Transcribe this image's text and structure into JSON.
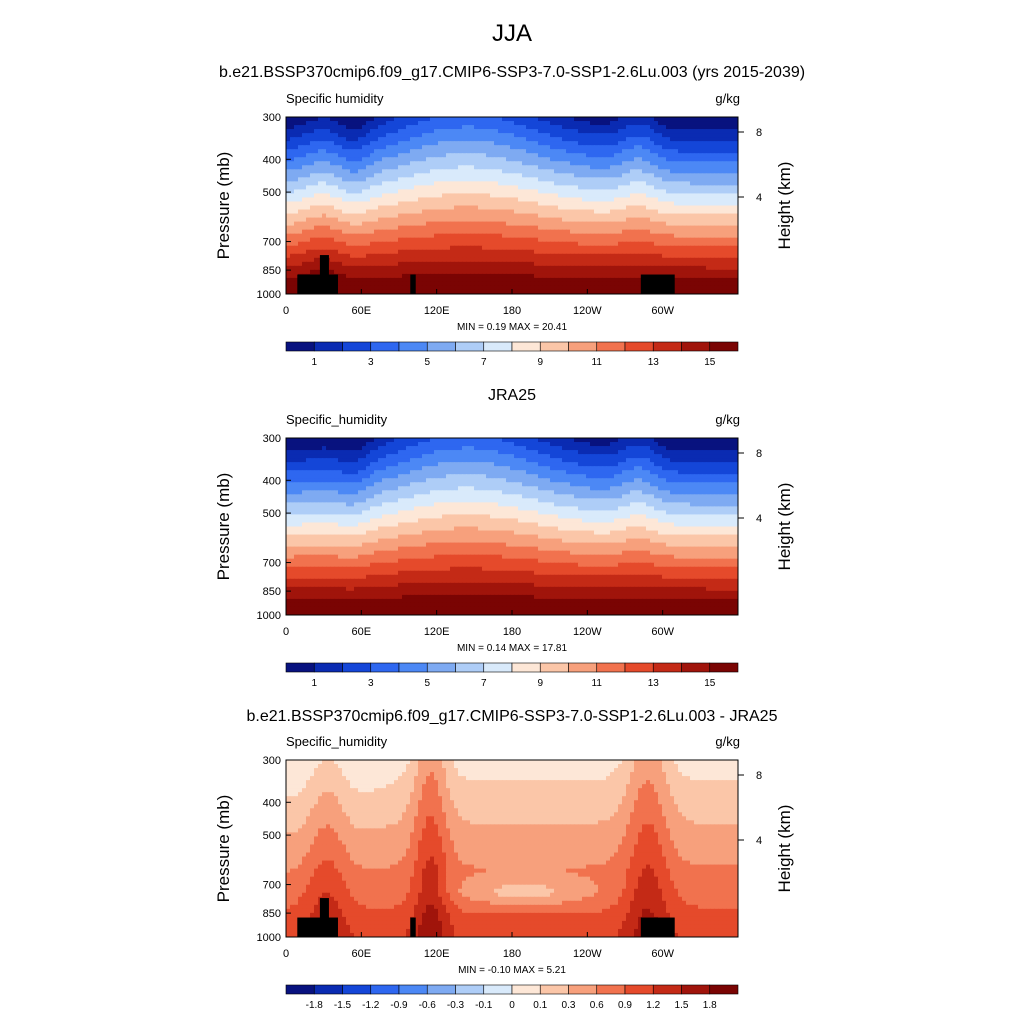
{
  "figure": {
    "title": "JJA"
  },
  "chart_data": [
    {
      "type": "heatmap",
      "title": "b.e21.BSSP370cmip6.f09_g17.CMIP6-SSP3-7.0-SSP1-2.6Lu.003 (yrs 2015-2039)",
      "variable": "Specific humidity",
      "units": "g/kg",
      "ylabel": "Pressure (mb)",
      "ylabel_right": "Height (km)",
      "x_ticks": [
        "0",
        "60E",
        "120E",
        "180",
        "120W",
        "60W"
      ],
      "y_ticks": [
        "300",
        "400",
        "500",
        "700",
        "850",
        "1000"
      ],
      "y2_ticks": [
        "8",
        "4"
      ],
      "minmax": "MIN =  0.19  MAX =  20.41",
      "min": 0.19,
      "max": 20.41,
      "colorbar_labels": [
        "1",
        "3",
        "5",
        "7",
        "9",
        "11",
        "13",
        "15"
      ],
      "colors": [
        "#08127f",
        "#0a2bb2",
        "#1446d8",
        "#2e67f0",
        "#4c88f5",
        "#7eaaf2",
        "#aecdf7",
        "#d9eafb",
        "#fde7d7",
        "#fbc6a8",
        "#f7a07c",
        "#f1724e",
        "#e54a2b",
        "#c42a16",
        "#a0140b",
        "#7a0403"
      ],
      "terrain": true
    },
    {
      "type": "heatmap",
      "title": "JRA25",
      "variable": "Specific_humidity",
      "units": "g/kg",
      "ylabel": "Pressure (mb)",
      "ylabel_right": "Height (km)",
      "x_ticks": [
        "0",
        "60E",
        "120E",
        "180",
        "120W",
        "60W"
      ],
      "y_ticks": [
        "300",
        "400",
        "500",
        "700",
        "850",
        "1000"
      ],
      "y2_ticks": [
        "8",
        "4"
      ],
      "minmax": "MIN =  0.14  MAX =  17.81",
      "min": 0.14,
      "max": 17.81,
      "colorbar_labels": [
        "1",
        "3",
        "5",
        "7",
        "9",
        "11",
        "13",
        "15"
      ],
      "colors": [
        "#08127f",
        "#0a2bb2",
        "#1446d8",
        "#2e67f0",
        "#4c88f5",
        "#7eaaf2",
        "#aecdf7",
        "#d9eafb",
        "#fde7d7",
        "#fbc6a8",
        "#f7a07c",
        "#f1724e",
        "#e54a2b",
        "#c42a16",
        "#a0140b",
        "#7a0403"
      ],
      "terrain": false
    },
    {
      "type": "heatmap",
      "title": "b.e21.BSSP370cmip6.f09_g17.CMIP6-SSP3-7.0-SSP1-2.6Lu.003 - JRA25",
      "variable": "Specific_humidity",
      "units": "g/kg",
      "ylabel": "Pressure (mb)",
      "ylabel_right": "Height (km)",
      "x_ticks": [
        "0",
        "60E",
        "120E",
        "180",
        "120W",
        "60W"
      ],
      "y_ticks": [
        "300",
        "400",
        "500",
        "700",
        "850",
        "1000"
      ],
      "y2_ticks": [
        "8",
        "4"
      ],
      "minmax": "MIN =  -0.10  MAX =  5.21",
      "min": -0.1,
      "max": 5.21,
      "colorbar_labels": [
        "-1.8",
        "-1.5",
        "-1.2",
        "-0.9",
        "-0.6",
        "-0.3",
        "-0.1",
        "0",
        "0.1",
        "0.3",
        "0.6",
        "0.9",
        "1.2",
        "1.5",
        "1.8"
      ],
      "colors": [
        "#08127f",
        "#0a2bb2",
        "#1446d8",
        "#2e67f0",
        "#4c88f5",
        "#7eaaf2",
        "#aecdf7",
        "#d9eafb",
        "#fde7d7",
        "#fbc6a8",
        "#f7a07c",
        "#f1724e",
        "#e54a2b",
        "#c42a16",
        "#a0140b",
        "#7a0403"
      ],
      "terrain": true
    }
  ]
}
